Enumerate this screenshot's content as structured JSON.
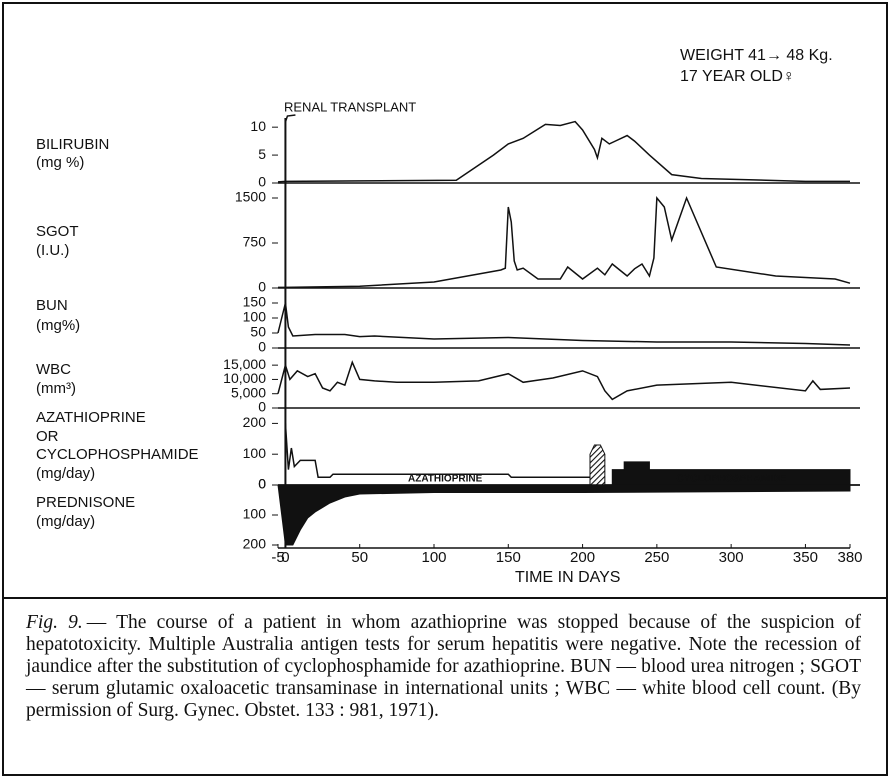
{
  "notes": {
    "weight": "WEIGHT 41→ 48 Kg.",
    "age": "17 YEAR OLD♀",
    "event": "RENAL TRANSPLANT"
  },
  "chart_data": [
    {
      "type": "line",
      "ylabel": [
        "BILIRUBIN",
        "(mg %)"
      ],
      "xlim": [
        -5,
        380
      ],
      "ylim": [
        0,
        12
      ],
      "yticks": [
        0,
        5,
        10
      ],
      "color": "#111111",
      "x": [
        -5,
        0,
        115,
        140,
        150,
        160,
        175,
        185,
        195,
        200,
        208,
        210,
        213,
        218,
        222,
        230,
        235,
        245,
        260,
        280,
        350,
        380
      ],
      "values": [
        0.2,
        0.3,
        0.5,
        5,
        7,
        8,
        10.5,
        10.3,
        11,
        9.5,
        6,
        4.5,
        8,
        7,
        7.5,
        8.5,
        7.5,
        5,
        1.5,
        0.8,
        0.3,
        0.3
      ]
    },
    {
      "type": "line",
      "ylabel": [
        "SGOT",
        "(I.U.)"
      ],
      "xlim": [
        -5,
        380
      ],
      "ylim": [
        0,
        1750
      ],
      "yticks": [
        0,
        750,
        1500
      ],
      "color": "#111111",
      "x": [
        -5,
        0,
        50,
        100,
        145,
        148,
        150,
        152,
        154,
        156,
        160,
        170,
        185,
        190,
        200,
        210,
        215,
        220,
        225,
        230,
        235,
        240,
        245,
        248,
        250,
        255,
        260,
        270,
        290,
        330,
        370,
        380
      ],
      "values": [
        10,
        10,
        30,
        100,
        300,
        330,
        1350,
        1100,
        450,
        300,
        330,
        150,
        150,
        350,
        150,
        330,
        220,
        400,
        300,
        200,
        320,
        400,
        200,
        500,
        1500,
        1350,
        800,
        1500,
        350,
        200,
        150,
        80
      ]
    },
    {
      "type": "line",
      "ylabel": [
        "BUN",
        "(mg%)"
      ],
      "xlim": [
        -5,
        380
      ],
      "ylim": [
        0,
        200
      ],
      "yticks": [
        0,
        50,
        100,
        150
      ],
      "color": "#111111",
      "x": [
        -5,
        0,
        2,
        5,
        20,
        40,
        50,
        60,
        100,
        150,
        200,
        250,
        300,
        350,
        380
      ],
      "values": [
        50,
        150,
        70,
        40,
        45,
        45,
        38,
        40,
        30,
        35,
        25,
        20,
        20,
        15,
        10
      ]
    },
    {
      "type": "line",
      "ylabel": [
        "WBC",
        "(mm³)"
      ],
      "xlim": [
        -5,
        380
      ],
      "ylim": [
        0,
        21000
      ],
      "yticks": [
        0,
        {
          "value": 5000,
          "label": "5,000"
        },
        {
          "value": 10000,
          "label": "10,000"
        },
        {
          "value": 15000,
          "label": "15,000"
        }
      ],
      "color": "#111111",
      "x": [
        -5,
        0,
        3,
        8,
        15,
        20,
        25,
        30,
        35,
        40,
        45,
        50,
        60,
        75,
        100,
        130,
        150,
        160,
        180,
        200,
        210,
        215,
        220,
        230,
        250,
        300,
        350,
        355,
        360,
        380
      ],
      "values": [
        5000,
        15000,
        10000,
        13000,
        11000,
        12000,
        7000,
        6000,
        9000,
        8000,
        16000,
        10000,
        9500,
        9000,
        9000,
        9500,
        12000,
        9000,
        10500,
        13000,
        11000,
        6000,
        3000,
        6000,
        8000,
        9000,
        6000,
        9500,
        6500,
        7000
      ]
    },
    {
      "type": "line",
      "ylabel": [
        "AZATHIOPRINE",
        "OR",
        "CYCLOPHOSPHAMIDE",
        "(mg/day)"
      ],
      "xlim": [
        -5,
        380
      ],
      "ylim": [
        0,
        250
      ],
      "yticks": [
        0,
        100,
        200
      ],
      "series": [
        {
          "name": "AZATHIOPRINE",
          "type": "line",
          "color": "#111111",
          "x": [
            0,
            2,
            4,
            6,
            10,
            20,
            22,
            30,
            32,
            150,
            152,
            215
          ],
          "values": [
            200,
            50,
            120,
            60,
            80,
            80,
            25,
            25,
            35,
            35,
            25,
            25
          ]
        },
        {
          "type": "area",
          "hatch": true,
          "color": "#111111",
          "x": [
            205,
            208,
            212,
            215
          ],
          "values": [
            100,
            130,
            130,
            100
          ]
        },
        {
          "name": "CYCLOPHOSPHAMIDE",
          "type": "area",
          "color": "#111111",
          "x": [
            220,
            228,
            228,
            245,
            245,
            380
          ],
          "values": [
            50,
            50,
            75,
            75,
            50,
            50
          ]
        }
      ]
    },
    {
      "type": "area",
      "inverted": true,
      "ylabel": [
        "PREDNISONE",
        "(mg/day)"
      ],
      "xlim": [
        -5,
        380
      ],
      "ylim": [
        0,
        200
      ],
      "yticks": [
        0,
        100,
        200
      ],
      "color": "#111111",
      "x": [
        -5,
        0,
        5,
        10,
        15,
        20,
        30,
        40,
        50,
        100,
        150,
        200,
        380
      ],
      "values": [
        0,
        200,
        200,
        150,
        110,
        90,
        60,
        40,
        30,
        25,
        25,
        25,
        20
      ],
      "xticks": [
        -5,
        0,
        50,
        100,
        150,
        200,
        250,
        300,
        350,
        380
      ],
      "xlabel": "TIME IN DAYS"
    }
  ],
  "caption": {
    "label": "Fig. 9.",
    "text": "— The course of a patient in whom azathioprine was stopped because of the suspicion of hepatotoxicity. Multiple Australia antigen tests for serum hepatitis were negative. Note the recession of jaundice after the substitution of cyclophosphamide for azathioprine. BUN — blood urea nitrogen ; SGOT — serum glutamic oxaloacetic transaminase in international units ; WBC — white blood cell count. (By permission of Surg. Gynec. Obstet. 133 : 981, 1971)."
  }
}
